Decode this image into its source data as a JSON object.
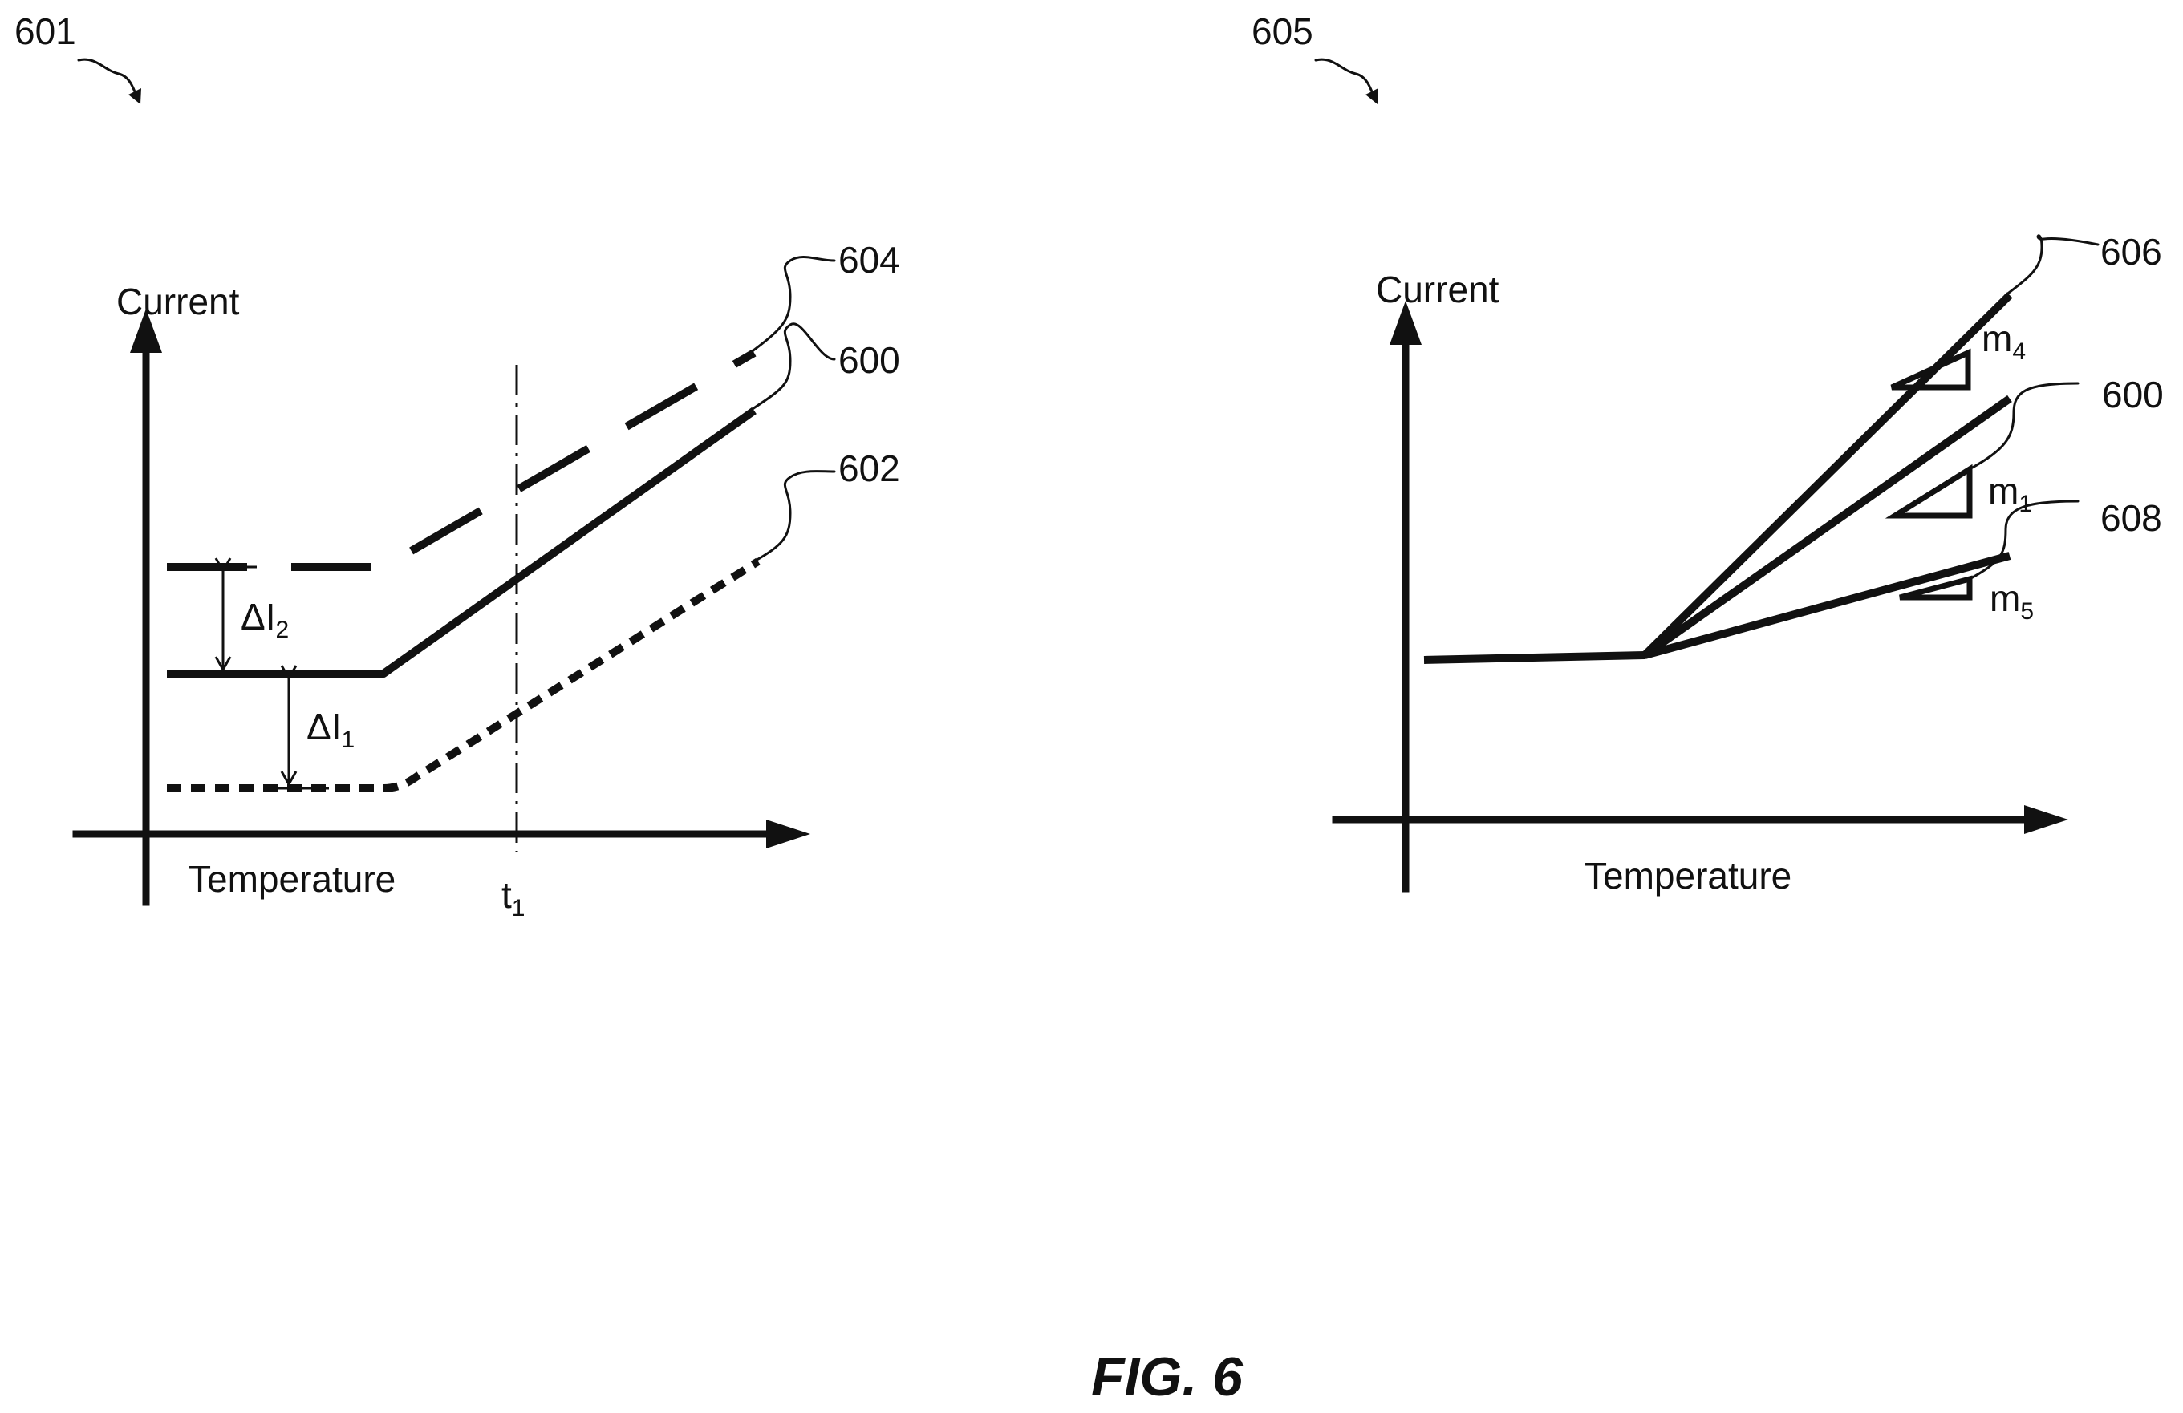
{
  "figure": {
    "caption": "FIG. 6",
    "ink_color": "#111111"
  },
  "left_panel": {
    "ref": "601",
    "y_axis_label": "Current",
    "x_axis_label": "Temperature",
    "t_marker_base": "t",
    "t_marker_sub": "1",
    "curves": [
      {
        "ref": "604",
        "style": "long-dash"
      },
      {
        "ref": "600",
        "style": "solid"
      },
      {
        "ref": "602",
        "style": "dotted"
      }
    ],
    "delta_i2": {
      "base": "ΔI",
      "sub": "2"
    },
    "delta_i1": {
      "base": "ΔI",
      "sub": "1"
    }
  },
  "right_panel": {
    "ref": "605",
    "y_axis_label": "Current",
    "x_axis_label": "Temperature",
    "curves": [
      {
        "ref": "606",
        "slope_base": "m",
        "slope_sub": "4"
      },
      {
        "ref": "600",
        "slope_base": "m",
        "slope_sub": "1"
      },
      {
        "ref": "608",
        "slope_base": "m",
        "slope_sub": "5"
      }
    ]
  }
}
